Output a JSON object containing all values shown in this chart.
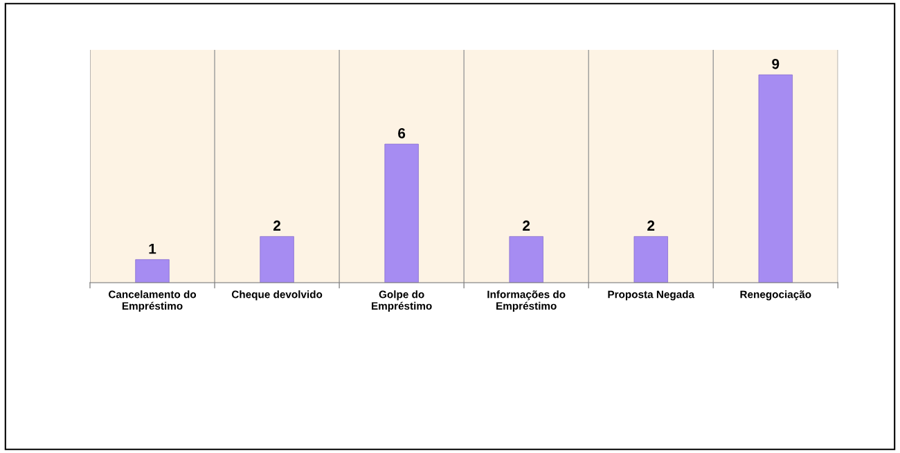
{
  "chart_data": {
    "type": "bar",
    "categories": [
      "Cancelamento do\nEmpréstimo",
      "Cheque devolvido",
      "Golpe do\nEmpréstimo",
      "Informações do\nEmpréstimo",
      "Proposta Negada",
      "Renegociação"
    ],
    "values": [
      1,
      2,
      6,
      2,
      2,
      9
    ],
    "color": "#a68cf2",
    "data_labels": true,
    "grid": "x",
    "legend": false
  }
}
